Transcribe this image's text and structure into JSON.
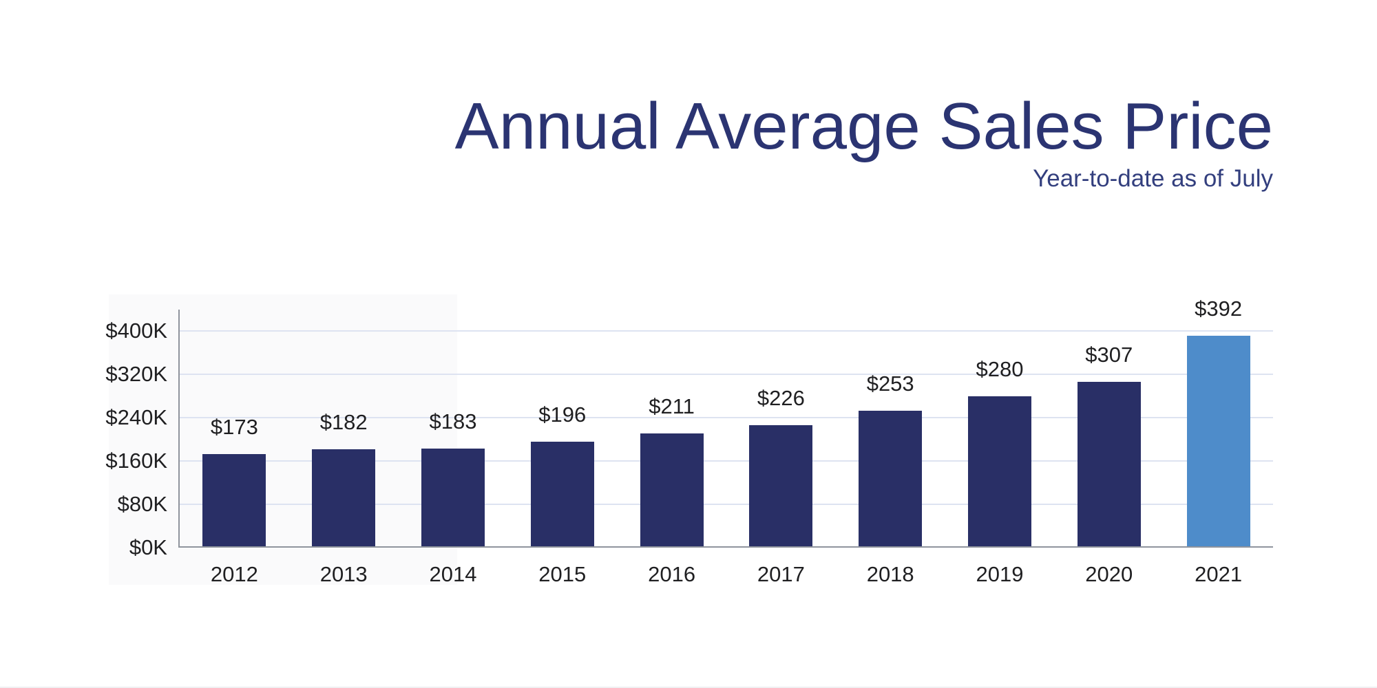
{
  "title": "Annual Average Sales Price",
  "subtitle": "Year-to-date as of July",
  "colors": {
    "title_text": "#2b3472",
    "subtitle_text": "#333f7e",
    "bar": "#292f66",
    "bar_highlight": "#4e8cca",
    "gridline": "#dde3f1",
    "axis_line": "#8f949d",
    "tick_label_text": "#1f1f21",
    "value_label_text": "#1f1f21"
  },
  "chart_data": {
    "type": "bar",
    "title": "Annual Average Sales Price",
    "subtitle": "Year-to-date as of July",
    "categories": [
      "2012",
      "2013",
      "2014",
      "2015",
      "2016",
      "2017",
      "2018",
      "2019",
      "2020",
      "2021"
    ],
    "values": [
      173,
      182,
      183,
      196,
      211,
      226,
      253,
      280,
      307,
      392
    ],
    "value_labels": [
      "$173",
      "$182",
      "$183",
      "$196",
      "$211",
      "$226",
      "$253",
      "$280",
      "$307",
      "$392"
    ],
    "unit": "thousands of dollars",
    "xlabel": "",
    "ylabel": "",
    "ylim": [
      0,
      440
    ],
    "yticks": [
      0,
      80,
      160,
      240,
      320,
      400
    ],
    "ytick_labels": [
      "$0K",
      "$80K",
      "$160K",
      "$240K",
      "$320K",
      "$400K"
    ],
    "grid": true,
    "legend": false,
    "highlight_index": 9,
    "highlight_meaning": "2021 year-to-date bar shown in light blue; prior full years in dark navy"
  }
}
